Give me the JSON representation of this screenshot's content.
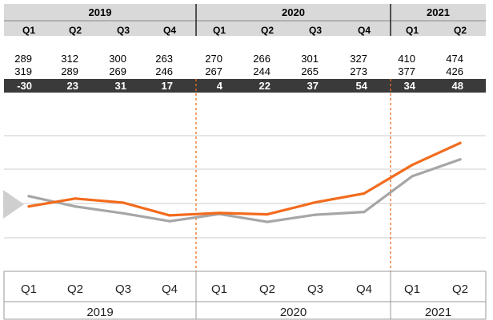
{
  "chart_data": {
    "type": "line",
    "years": [
      "2019",
      "2020",
      "2021"
    ],
    "categories": [
      {
        "year": "2019",
        "quarter": "Q1"
      },
      {
        "year": "2019",
        "quarter": "Q2"
      },
      {
        "year": "2019",
        "quarter": "Q3"
      },
      {
        "year": "2019",
        "quarter": "Q4"
      },
      {
        "year": "2020",
        "quarter": "Q1"
      },
      {
        "year": "2020",
        "quarter": "Q2"
      },
      {
        "year": "2020",
        "quarter": "Q3"
      },
      {
        "year": "2020",
        "quarter": "Q4"
      },
      {
        "year": "2021",
        "quarter": "Q1"
      },
      {
        "year": "2021",
        "quarter": "Q2"
      }
    ],
    "series": [
      {
        "color": "#333333",
        "values": [
          289,
          312,
          300,
          263,
          270,
          266,
          301,
          327,
          410,
          474
        ]
      },
      {
        "color": "#666666",
        "values": [
          319,
          289,
          269,
          246,
          267,
          244,
          265,
          273,
          377,
          426
        ]
      }
    ],
    "differences": [
      "-30",
      "23",
      "31",
      "17",
      "4",
      "22",
      "37",
      "54",
      "34",
      "48"
    ],
    "plot_lines": [
      {
        "color": "#f26b1d",
        "values": [
          289,
          312,
          300,
          263,
          270,
          266,
          301,
          327,
          410,
          474
        ]
      },
      {
        "color": "#a6a6a6",
        "values": [
          319,
          289,
          269,
          246,
          267,
          244,
          265,
          273,
          377,
          426
        ]
      }
    ],
    "ylim": [
      100,
      600
    ],
    "grid": true,
    "year_dividers": "dotted orange lines between years",
    "colors": {
      "orange": "#f26b1d",
      "gray": "#a6a6a6",
      "dark_band": "#3a3a3a",
      "arrow": "#cfcfcf",
      "grid": "#cccccc"
    }
  }
}
